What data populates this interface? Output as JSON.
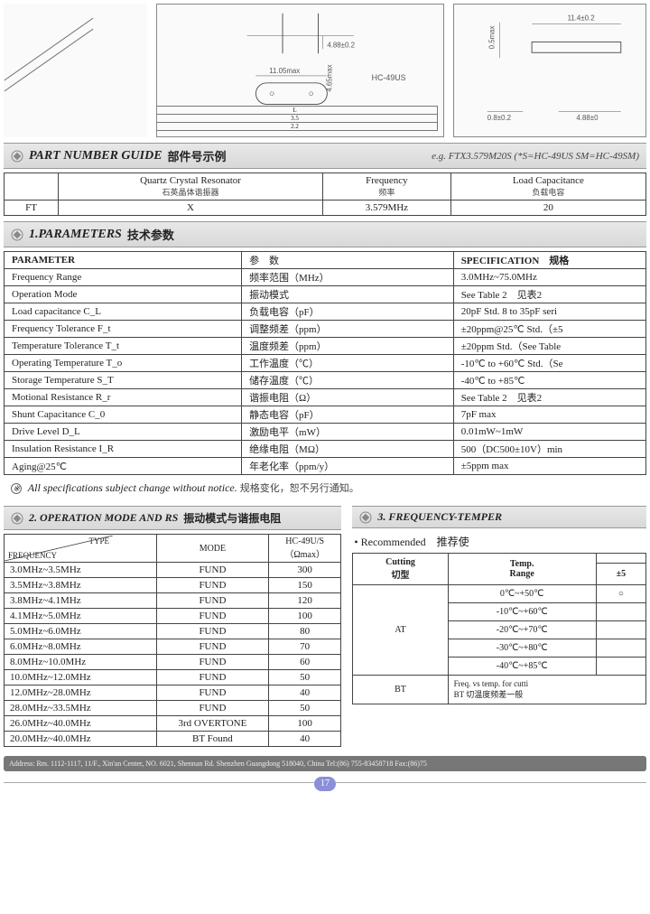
{
  "diagrams": {
    "mid": {
      "label_top": "4.88±0.2",
      "label_w": "11.05max",
      "label_h": "4.65max",
      "box_label": "HC-49US",
      "box_rows": [
        "L",
        "3.5",
        "2.2"
      ]
    },
    "right": {
      "dim_top": "11.4±0.2",
      "dim_h": "0.5max",
      "dim_b": "0.8±0.2",
      "dim_w": "4.88±0"
    }
  },
  "pn_guide": {
    "title": "PART NUMBER GUIDE",
    "title_cn": "部件号示例",
    "eg": "e.g.  FTX3.579M20S  (*S=HC-49US  SM=HC-49SM)",
    "cols": [
      {
        "en": "",
        "cn": ""
      },
      {
        "en": "Quartz Crystal Resonator",
        "cn": "石英晶体谐振器"
      },
      {
        "en": "Frequency",
        "cn": "频率"
      },
      {
        "en": "Load Capacitance",
        "cn": "负载电容"
      }
    ],
    "row": [
      "FT",
      "X",
      "3.579MHz",
      "20"
    ]
  },
  "params": {
    "title": "1.PARAMETERS",
    "title_cn": "技术参数",
    "head": [
      "PARAMETER",
      "参　数",
      "SPECIFICATION　规格"
    ],
    "rows": [
      [
        "Frequency Range",
        "频率范围（MHz）",
        "3.0MHz~75.0MHz"
      ],
      [
        "Operation Mode",
        "振动模式",
        "See Table 2　见表2"
      ],
      [
        "Load capacitance C_L",
        "负载电容（pF）",
        "20pF Std. 8 to 35pF seri"
      ],
      [
        "Frequency Tolerance F_t",
        "调整频差（ppm）",
        "±20ppm@25℃ Std.（±5"
      ],
      [
        "Temperature Tolerance T_t",
        "温度频差（ppm）",
        "±20ppm Std.（See Table"
      ],
      [
        "Operating Temperature T_o",
        "工作温度（℃）",
        "-10℃ to +60℃ Std.（Se"
      ],
      [
        "Storage Temperature S_T",
        "储存温度（℃）",
        "-40℃ to +85℃"
      ],
      [
        "Motional Resistance R_r",
        "谐振电阻（Ω）",
        "See Table 2　见表2"
      ],
      [
        "Shunt Capacitance C_0",
        "静态电容（pF）",
        "7pF max"
      ],
      [
        "Drive Level D_L",
        "激励电平（mW）",
        "0.01mW~1mW"
      ],
      [
        "Insulation Resistance I_R",
        "绝缘电阻（MΩ）",
        "500（DC500±10V）min"
      ],
      [
        "Aging@25℃",
        "年老化率（ppm/y）",
        "±5ppm max"
      ]
    ]
  },
  "notice": {
    "en": "All specifications subject change without notice.",
    "cn": "规格变化，恕不另行通知。"
  },
  "op_mode": {
    "title": "2. OPERATION MODE AND RS",
    "title_cn": "振动模式与谐振电阻",
    "diag_tr": "TYPE",
    "diag_bl": "FREQUENCY",
    "cols": [
      "MODE",
      "HC-49U/S\n（Ωmax）"
    ],
    "rows": [
      [
        "3.0MHz~3.5MHz",
        "FUND",
        "300"
      ],
      [
        "3.5MHz~3.8MHz",
        "FUND",
        "150"
      ],
      [
        "3.8MHz~4.1MHz",
        "FUND",
        "120"
      ],
      [
        "4.1MHz~5.0MHz",
        "FUND",
        "100"
      ],
      [
        "5.0MHz~6.0MHz",
        "FUND",
        "80"
      ],
      [
        "6.0MHz~8.0MHz",
        "FUND",
        "70"
      ],
      [
        "8.0MHz~10.0MHz",
        "FUND",
        "60"
      ],
      [
        "10.0MHz~12.0MHz",
        "FUND",
        "50"
      ],
      [
        "12.0MHz~28.0MHz",
        "FUND",
        "40"
      ],
      [
        "28.0MHz~33.5MHz",
        "FUND",
        "50"
      ],
      [
        "26.0MHz~40.0MHz",
        "3rd OVERTONE",
        "100"
      ],
      [
        "20.0MHz~40.0MHz",
        "BT Found",
        "40"
      ]
    ]
  },
  "freq_temp": {
    "title": "3. FREQUENCY-TEMPER",
    "rec": "• Recommended　推荐使",
    "head": [
      "Cutting\n切型",
      "Temp.\nRange",
      "±5"
    ],
    "at_rows": [
      [
        "0℃~+50℃",
        "○"
      ],
      [
        "-10℃~+60℃",
        ""
      ],
      [
        "-20℃~+70℃",
        ""
      ],
      [
        "-30℃~+80℃",
        ""
      ],
      [
        "-40℃~+85℃",
        ""
      ]
    ],
    "at_label": "AT",
    "bt_label": "BT",
    "bt_text": "Freq. vs temp. for cutti\nBT 切温度频差一般"
  },
  "footer": "Address: Rm. 1112-1117, 11/F., Xin'an Center, NO.  6021, Shennan Rd. Shenzhen Guangdong  518040, China Tel:(86) 755-83458718  Fax:(86)75",
  "page": "17"
}
